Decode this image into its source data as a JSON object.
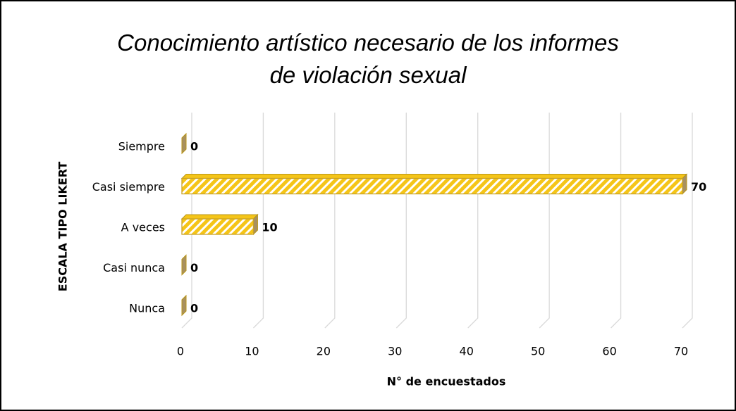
{
  "chart_data": {
    "type": "bar",
    "orientation": "horizontal",
    "title": "Conocimiento artístico necesario de los informes de violación sexual",
    "xlabel": "N° de encuestados",
    "ylabel": "ESCALA TIPO LIKERT",
    "categories": [
      "Siempre",
      "Casi siempre",
      "A veces",
      "Casi nunca",
      "Nunca"
    ],
    "values": [
      0,
      70,
      10,
      0,
      0
    ],
    "color": "#f5c518",
    "xlim": [
      0,
      70
    ],
    "xticks": [
      0,
      10,
      20,
      30,
      40,
      50,
      60,
      70
    ],
    "grid": true
  }
}
